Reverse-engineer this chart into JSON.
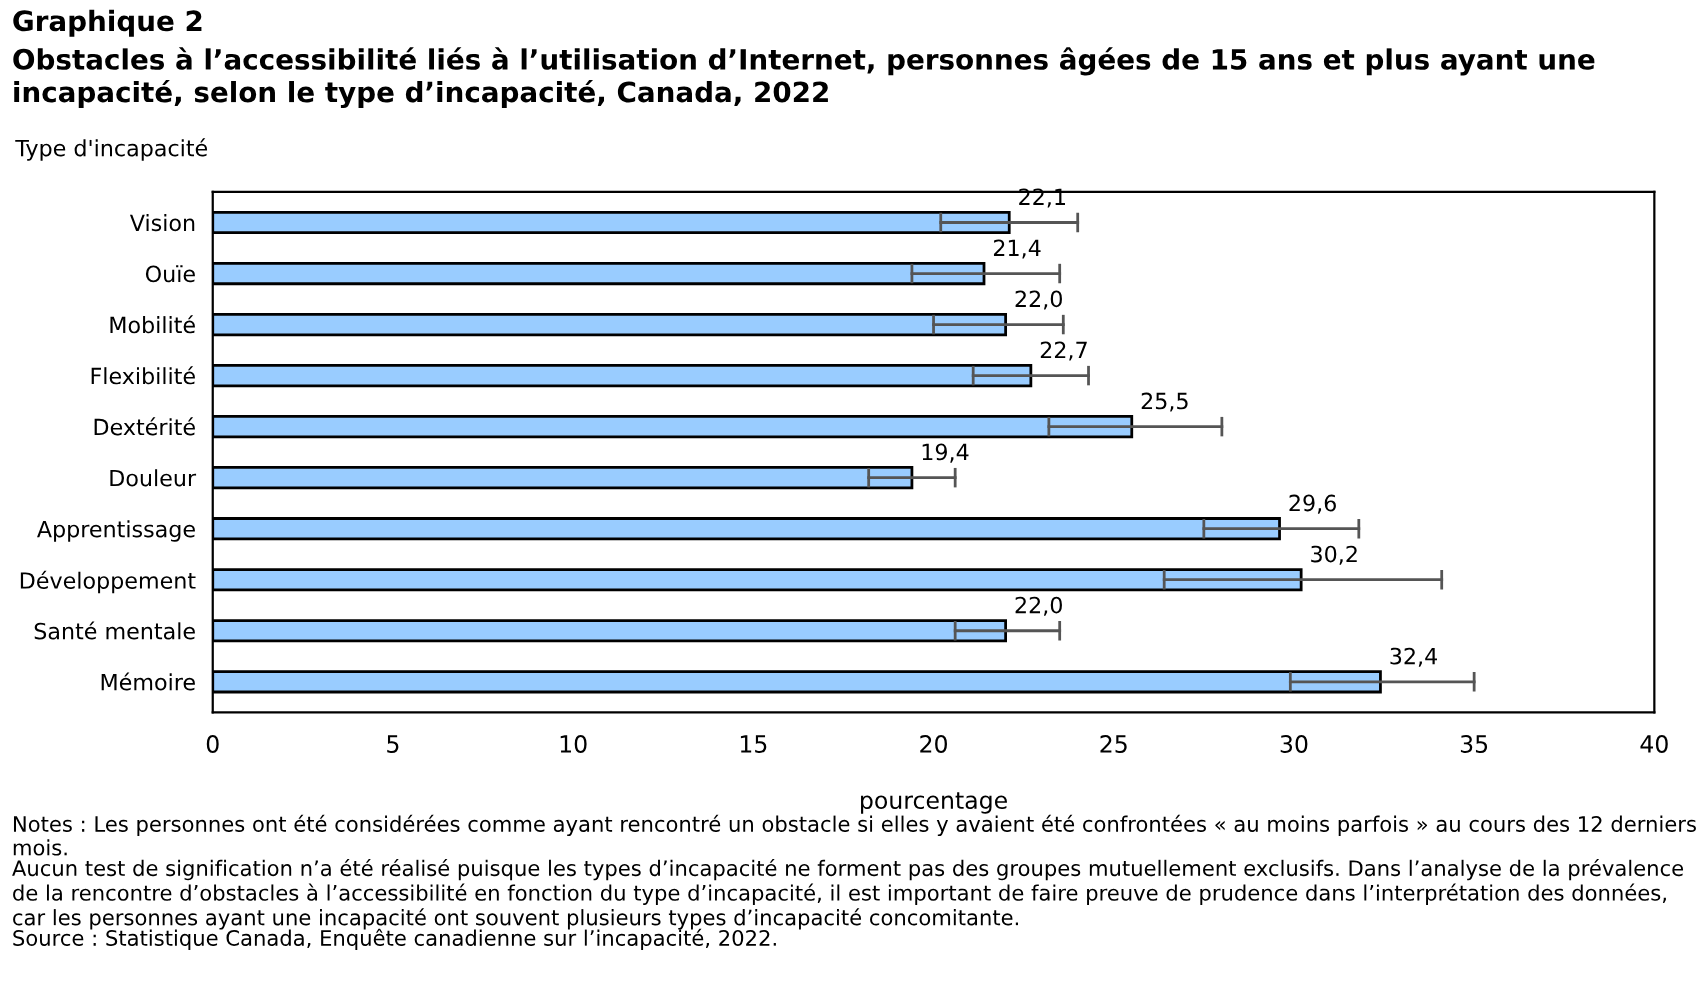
{
  "chart_data": {
    "type": "bar",
    "orientation": "horizontal",
    "title": "Graphique 2",
    "subtitle": "Obstacles à l’accessibilité liés à l’utilisation d’Internet, personnes âgées de 15 ans et plus ayant une incapacité, selon le type d’incapacité, Canada, 2022",
    "ylabel": "Type d'incapacité",
    "xlabel": "pourcentage",
    "categories": [
      "Vision",
      "Ouïe",
      "Mobilité",
      "Flexibilité",
      "Dextérité",
      "Douleur",
      "Apprentissage",
      "Développement",
      "Santé mentale",
      "Mémoire"
    ],
    "values": [
      22.1,
      21.4,
      22.0,
      22.7,
      25.5,
      19.4,
      29.6,
      30.2,
      22.0,
      32.4
    ],
    "value_labels": [
      "22,1",
      "21,4",
      "22,0",
      "22,7",
      "25,5",
      "19,4",
      "29,6",
      "30,2",
      "22,0",
      "32,4"
    ],
    "errors": [
      [
        20.2,
        24.0
      ],
      [
        19.4,
        23.5
      ],
      [
        20.0,
        23.6
      ],
      [
        21.1,
        24.3
      ],
      [
        23.2,
        28.0
      ],
      [
        18.2,
        20.6
      ],
      [
        27.5,
        31.8
      ],
      [
        26.4,
        34.1
      ],
      [
        20.6,
        23.5
      ],
      [
        29.9,
        35.0
      ]
    ],
    "color": "#99ccff",
    "xlim": [
      0,
      40
    ],
    "xticks": [
      0,
      5,
      10,
      15,
      20,
      25,
      30,
      35,
      40
    ],
    "grid": false,
    "legend": false,
    "annotations": [
      "Notes : Les personnes ont été considérées comme ayant rencontré un obstacle si elles y avaient été confrontées « au moins parfois » au cours des 12 derniers mois.",
      "Aucun test de signification n’a été réalisé puisque les types d’incapacité ne forment pas des groupes mutuellement exclusifs. Dans l’analyse de la prévalence de la rencontre d’obstacles à l’accessibilité en fonction du type d’incapacité, il est important de faire preuve de prudence dans l’interprétation des données, car les personnes ayant une incapacité ont souvent plusieurs types d’incapacité concomitante.",
      "Source : Statistique Canada, Enquête canadienne sur l’incapacité, 2022."
    ]
  }
}
